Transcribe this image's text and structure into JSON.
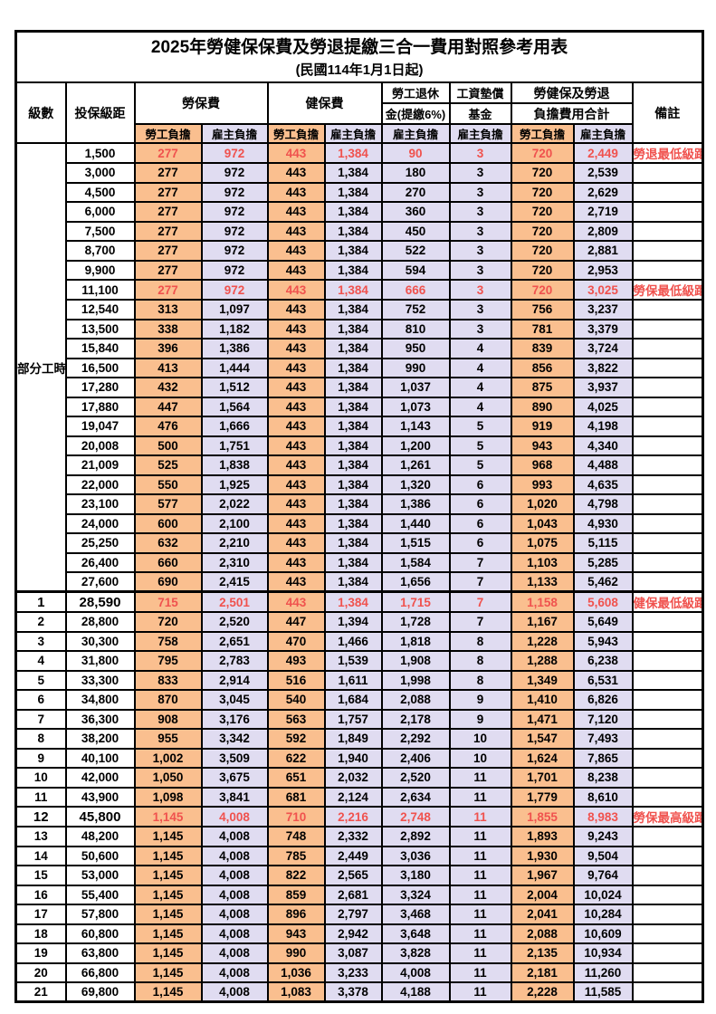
{
  "title": "2025年勞健保保費及勞退提繳三合一費用對照參考用表",
  "subtitle": "(民國114年1月1日起)",
  "colors": {
    "orange": "#FABF8F",
    "lavender": "#E0DCF1",
    "red": "#F0524E",
    "border": "#000000"
  },
  "header": {
    "level": "級數",
    "salary": "投保級距",
    "labor_ins": "勞保費",
    "health_ins": "健保費",
    "pension_line1": "勞工退休",
    "pension_line2": "金(提繳6%)",
    "wage_fund_line1": "工資墊償",
    "wage_fund_line2": "基金",
    "total_line1": "勞健保及勞退",
    "total_line2": "負擔費用合計",
    "remark": "備註",
    "employee": "勞工負擔",
    "employer": "雇主負擔"
  },
  "part_time": {
    "label": "部分工時",
    "span": 23
  },
  "rows": [
    {
      "level": "",
      "salary": "1,500",
      "values": [
        "277",
        "972",
        "443",
        "1,384",
        "90",
        "3",
        "720",
        "2,449"
      ],
      "note": "勞退最低級距",
      "red": true,
      "bold": false,
      "section_start": false
    },
    {
      "level": "",
      "salary": "3,000",
      "values": [
        "277",
        "972",
        "443",
        "1,384",
        "180",
        "3",
        "720",
        "2,539"
      ],
      "note": "",
      "red": false,
      "bold": false,
      "section_start": false
    },
    {
      "level": "",
      "salary": "4,500",
      "values": [
        "277",
        "972",
        "443",
        "1,384",
        "270",
        "3",
        "720",
        "2,629"
      ],
      "note": "",
      "red": false,
      "bold": false,
      "section_start": false
    },
    {
      "level": "",
      "salary": "6,000",
      "values": [
        "277",
        "972",
        "443",
        "1,384",
        "360",
        "3",
        "720",
        "2,719"
      ],
      "note": "",
      "red": false,
      "bold": false,
      "section_start": false
    },
    {
      "level": "",
      "salary": "7,500",
      "values": [
        "277",
        "972",
        "443",
        "1,384",
        "450",
        "3",
        "720",
        "2,809"
      ],
      "note": "",
      "red": false,
      "bold": false,
      "section_start": false
    },
    {
      "level": "",
      "salary": "8,700",
      "values": [
        "277",
        "972",
        "443",
        "1,384",
        "522",
        "3",
        "720",
        "2,881"
      ],
      "note": "",
      "red": false,
      "bold": false,
      "section_start": false
    },
    {
      "level": "",
      "salary": "9,900",
      "values": [
        "277",
        "972",
        "443",
        "1,384",
        "594",
        "3",
        "720",
        "2,953"
      ],
      "note": "",
      "red": false,
      "bold": false,
      "section_start": false
    },
    {
      "level": "",
      "salary": "11,100",
      "values": [
        "277",
        "972",
        "443",
        "1,384",
        "666",
        "3",
        "720",
        "3,025"
      ],
      "note": "勞保最低級距",
      "red": true,
      "bold": false,
      "section_start": false
    },
    {
      "level": "",
      "salary": "12,540",
      "values": [
        "313",
        "1,097",
        "443",
        "1,384",
        "752",
        "3",
        "756",
        "3,237"
      ],
      "note": "",
      "red": false,
      "bold": false,
      "section_start": false
    },
    {
      "level": "",
      "salary": "13,500",
      "values": [
        "338",
        "1,182",
        "443",
        "1,384",
        "810",
        "3",
        "781",
        "3,379"
      ],
      "note": "",
      "red": false,
      "bold": false,
      "section_start": false
    },
    {
      "level": "",
      "salary": "15,840",
      "values": [
        "396",
        "1,386",
        "443",
        "1,384",
        "950",
        "4",
        "839",
        "3,724"
      ],
      "note": "",
      "red": false,
      "bold": false,
      "section_start": false
    },
    {
      "level": "",
      "salary": "16,500",
      "values": [
        "413",
        "1,444",
        "443",
        "1,384",
        "990",
        "4",
        "856",
        "3,822"
      ],
      "note": "",
      "red": false,
      "bold": false,
      "section_start": false
    },
    {
      "level": "",
      "salary": "17,280",
      "values": [
        "432",
        "1,512",
        "443",
        "1,384",
        "1,037",
        "4",
        "875",
        "3,937"
      ],
      "note": "",
      "red": false,
      "bold": false,
      "section_start": false
    },
    {
      "level": "",
      "salary": "17,880",
      "values": [
        "447",
        "1,564",
        "443",
        "1,384",
        "1,073",
        "4",
        "890",
        "4,025"
      ],
      "note": "",
      "red": false,
      "bold": false,
      "section_start": false
    },
    {
      "level": "",
      "salary": "19,047",
      "values": [
        "476",
        "1,666",
        "443",
        "1,384",
        "1,143",
        "5",
        "919",
        "4,198"
      ],
      "note": "",
      "red": false,
      "bold": false,
      "section_start": false
    },
    {
      "level": "",
      "salary": "20,008",
      "values": [
        "500",
        "1,751",
        "443",
        "1,384",
        "1,200",
        "5",
        "943",
        "4,340"
      ],
      "note": "",
      "red": false,
      "bold": false,
      "section_start": false
    },
    {
      "level": "",
      "salary": "21,009",
      "values": [
        "525",
        "1,838",
        "443",
        "1,384",
        "1,261",
        "5",
        "968",
        "4,488"
      ],
      "note": "",
      "red": false,
      "bold": false,
      "section_start": false
    },
    {
      "level": "",
      "salary": "22,000",
      "values": [
        "550",
        "1,925",
        "443",
        "1,384",
        "1,320",
        "6",
        "993",
        "4,635"
      ],
      "note": "",
      "red": false,
      "bold": false,
      "section_start": false
    },
    {
      "level": "",
      "salary": "23,100",
      "values": [
        "577",
        "2,022",
        "443",
        "1,384",
        "1,386",
        "6",
        "1,020",
        "4,798"
      ],
      "note": "",
      "red": false,
      "bold": false,
      "section_start": false
    },
    {
      "level": "",
      "salary": "24,000",
      "values": [
        "600",
        "2,100",
        "443",
        "1,384",
        "1,440",
        "6",
        "1,043",
        "4,930"
      ],
      "note": "",
      "red": false,
      "bold": false,
      "section_start": false
    },
    {
      "level": "",
      "salary": "25,250",
      "values": [
        "632",
        "2,210",
        "443",
        "1,384",
        "1,515",
        "6",
        "1,075",
        "5,115"
      ],
      "note": "",
      "red": false,
      "bold": false,
      "section_start": false
    },
    {
      "level": "",
      "salary": "26,400",
      "values": [
        "660",
        "2,310",
        "443",
        "1,384",
        "1,584",
        "7",
        "1,103",
        "5,285"
      ],
      "note": "",
      "red": false,
      "bold": false,
      "section_start": false
    },
    {
      "level": "",
      "salary": "27,600",
      "values": [
        "690",
        "2,415",
        "443",
        "1,384",
        "1,656",
        "7",
        "1,133",
        "5,462"
      ],
      "note": "",
      "red": false,
      "bold": false,
      "section_start": false
    },
    {
      "level": "1",
      "salary": "28,590",
      "values": [
        "715",
        "2,501",
        "443",
        "1,384",
        "1,715",
        "7",
        "1,158",
        "5,608"
      ],
      "note": "健保最低級距",
      "red": true,
      "bold": true,
      "section_start": true
    },
    {
      "level": "2",
      "salary": "28,800",
      "values": [
        "720",
        "2,520",
        "447",
        "1,394",
        "1,728",
        "7",
        "1,167",
        "5,649"
      ],
      "note": "",
      "red": false,
      "bold": false,
      "section_start": false
    },
    {
      "level": "3",
      "salary": "30,300",
      "values": [
        "758",
        "2,651",
        "470",
        "1,466",
        "1,818",
        "8",
        "1,228",
        "5,943"
      ],
      "note": "",
      "red": false,
      "bold": false,
      "section_start": false
    },
    {
      "level": "4",
      "salary": "31,800",
      "values": [
        "795",
        "2,783",
        "493",
        "1,539",
        "1,908",
        "8",
        "1,288",
        "6,238"
      ],
      "note": "",
      "red": false,
      "bold": false,
      "section_start": false
    },
    {
      "level": "5",
      "salary": "33,300",
      "values": [
        "833",
        "2,914",
        "516",
        "1,611",
        "1,998",
        "8",
        "1,349",
        "6,531"
      ],
      "note": "",
      "red": false,
      "bold": false,
      "section_start": false
    },
    {
      "level": "6",
      "salary": "34,800",
      "values": [
        "870",
        "3,045",
        "540",
        "1,684",
        "2,088",
        "9",
        "1,410",
        "6,826"
      ],
      "note": "",
      "red": false,
      "bold": false,
      "section_start": false
    },
    {
      "level": "7",
      "salary": "36,300",
      "values": [
        "908",
        "3,176",
        "563",
        "1,757",
        "2,178",
        "9",
        "1,471",
        "7,120"
      ],
      "note": "",
      "red": false,
      "bold": false,
      "section_start": false
    },
    {
      "level": "8",
      "salary": "38,200",
      "values": [
        "955",
        "3,342",
        "592",
        "1,849",
        "2,292",
        "10",
        "1,547",
        "7,493"
      ],
      "note": "",
      "red": false,
      "bold": false,
      "section_start": false
    },
    {
      "level": "9",
      "salary": "40,100",
      "values": [
        "1,002",
        "3,509",
        "622",
        "1,940",
        "2,406",
        "10",
        "1,624",
        "7,865"
      ],
      "note": "",
      "red": false,
      "bold": false,
      "section_start": false
    },
    {
      "level": "10",
      "salary": "42,000",
      "values": [
        "1,050",
        "3,675",
        "651",
        "2,032",
        "2,520",
        "11",
        "1,701",
        "8,238"
      ],
      "note": "",
      "red": false,
      "bold": false,
      "section_start": false
    },
    {
      "level": "11",
      "salary": "43,900",
      "values": [
        "1,098",
        "3,841",
        "681",
        "2,124",
        "2,634",
        "11",
        "1,779",
        "8,610"
      ],
      "note": "",
      "red": false,
      "bold": false,
      "section_start": false
    },
    {
      "level": "12",
      "salary": "45,800",
      "values": [
        "1,145",
        "4,008",
        "710",
        "2,216",
        "2,748",
        "11",
        "1,855",
        "8,983"
      ],
      "note": "勞保最高級距",
      "red": true,
      "bold": true,
      "section_start": false
    },
    {
      "level": "13",
      "salary": "48,200",
      "values": [
        "1,145",
        "4,008",
        "748",
        "2,332",
        "2,892",
        "11",
        "1,893",
        "9,243"
      ],
      "note": "",
      "red": false,
      "bold": false,
      "section_start": false
    },
    {
      "level": "14",
      "salary": "50,600",
      "values": [
        "1,145",
        "4,008",
        "785",
        "2,449",
        "3,036",
        "11",
        "1,930",
        "9,504"
      ],
      "note": "",
      "red": false,
      "bold": false,
      "section_start": false
    },
    {
      "level": "15",
      "salary": "53,000",
      "values": [
        "1,145",
        "4,008",
        "822",
        "2,565",
        "3,180",
        "11",
        "1,967",
        "9,764"
      ],
      "note": "",
      "red": false,
      "bold": false,
      "section_start": false
    },
    {
      "level": "16",
      "salary": "55,400",
      "values": [
        "1,145",
        "4,008",
        "859",
        "2,681",
        "3,324",
        "11",
        "2,004",
        "10,024"
      ],
      "note": "",
      "red": false,
      "bold": false,
      "section_start": false
    },
    {
      "level": "17",
      "salary": "57,800",
      "values": [
        "1,145",
        "4,008",
        "896",
        "2,797",
        "3,468",
        "11",
        "2,041",
        "10,284"
      ],
      "note": "",
      "red": false,
      "bold": false,
      "section_start": false
    },
    {
      "level": "18",
      "salary": "60,800",
      "values": [
        "1,145",
        "4,008",
        "943",
        "2,942",
        "3,648",
        "11",
        "2,088",
        "10,609"
      ],
      "note": "",
      "red": false,
      "bold": false,
      "section_start": false
    },
    {
      "level": "19",
      "salary": "63,800",
      "values": [
        "1,145",
        "4,008",
        "990",
        "3,087",
        "3,828",
        "11",
        "2,135",
        "10,934"
      ],
      "note": "",
      "red": false,
      "bold": false,
      "section_start": false
    },
    {
      "level": "20",
      "salary": "66,800",
      "values": [
        "1,145",
        "4,008",
        "1,036",
        "3,233",
        "4,008",
        "11",
        "2,181",
        "11,260"
      ],
      "note": "",
      "red": false,
      "bold": false,
      "section_start": false
    },
    {
      "level": "21",
      "salary": "69,800",
      "values": [
        "1,145",
        "4,008",
        "1,083",
        "3,378",
        "4,188",
        "11",
        "2,228",
        "11,585"
      ],
      "note": "",
      "red": false,
      "bold": false,
      "section_start": false
    }
  ]
}
